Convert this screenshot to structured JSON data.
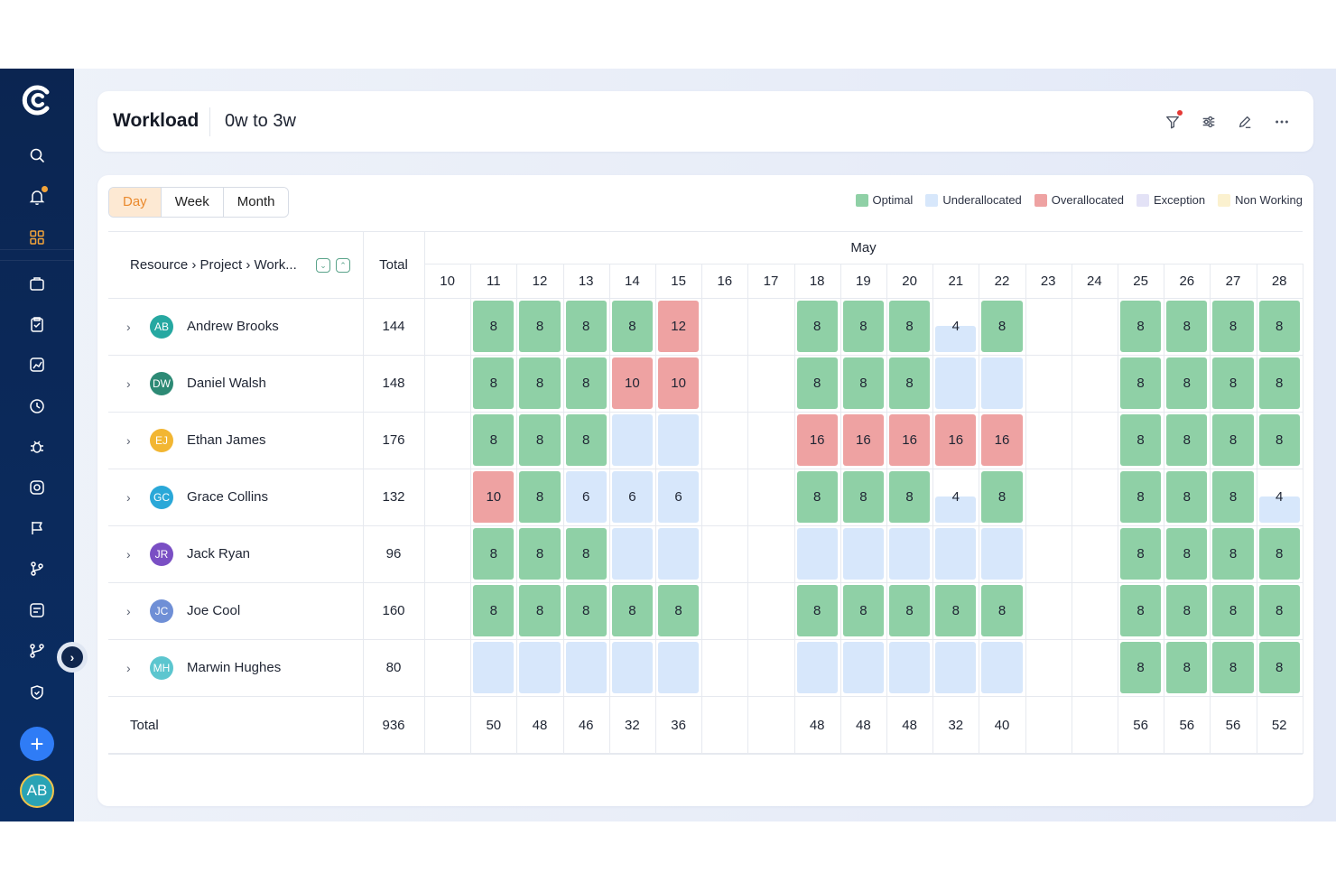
{
  "header": {
    "title": "Workload",
    "range": "0w to 3w"
  },
  "tabs": [
    {
      "label": "Day",
      "active": true
    },
    {
      "label": "Week",
      "active": false
    },
    {
      "label": "Month",
      "active": false
    }
  ],
  "legend": [
    {
      "label": "Optimal",
      "color": "#8fd0a6"
    },
    {
      "label": "Underallocated",
      "color": "#d7e7fb"
    },
    {
      "label": "Overallocated",
      "color": "#eea2a2"
    },
    {
      "label": "Exception",
      "color": "#e3e2f6"
    },
    {
      "label": "Non Working",
      "color": "#fbf1cf"
    }
  ],
  "grid": {
    "resource_header": "Resource › Project › Work...",
    "total_header": "Total",
    "month": "May",
    "days": [
      "10",
      "11",
      "12",
      "13",
      "14",
      "15",
      "16",
      "17",
      "18",
      "19",
      "20",
      "21",
      "22",
      "23",
      "24",
      "25",
      "26",
      "27",
      "28"
    ],
    "rows": [
      {
        "initials": "AB",
        "name": "Andrew Brooks",
        "avatar_color": "#26a8a1",
        "total": "144",
        "cells": [
          null,
          {
            "v": "8",
            "s": "o"
          },
          {
            "v": "8",
            "s": "o"
          },
          {
            "v": "8",
            "s": "o"
          },
          {
            "v": "8",
            "s": "o"
          },
          {
            "v": "12",
            "s": "x"
          },
          null,
          null,
          {
            "v": "8",
            "s": "o"
          },
          {
            "v": "8",
            "s": "o"
          },
          {
            "v": "8",
            "s": "o"
          },
          {
            "v": "4",
            "s": "p"
          },
          {
            "v": "8",
            "s": "o"
          },
          null,
          null,
          {
            "v": "8",
            "s": "o"
          },
          {
            "v": "8",
            "s": "o"
          },
          {
            "v": "8",
            "s": "o"
          },
          {
            "v": "8",
            "s": "o"
          }
        ]
      },
      {
        "initials": "DW",
        "name": "Daniel Walsh",
        "avatar_color": "#2d8a75",
        "total": "148",
        "cells": [
          null,
          {
            "v": "8",
            "s": "o"
          },
          {
            "v": "8",
            "s": "o"
          },
          {
            "v": "8",
            "s": "o"
          },
          {
            "v": "10",
            "s": "x"
          },
          {
            "v": "10",
            "s": "x"
          },
          null,
          null,
          {
            "v": "8",
            "s": "o"
          },
          {
            "v": "8",
            "s": "o"
          },
          {
            "v": "8",
            "s": "o"
          },
          {
            "v": "",
            "s": "u"
          },
          {
            "v": "",
            "s": "u"
          },
          null,
          null,
          {
            "v": "8",
            "s": "o"
          },
          {
            "v": "8",
            "s": "o"
          },
          {
            "v": "8",
            "s": "o"
          },
          {
            "v": "8",
            "s": "o"
          }
        ]
      },
      {
        "initials": "EJ",
        "name": "Ethan James",
        "avatar_color": "#f2b632",
        "total": "176",
        "cells": [
          null,
          {
            "v": "8",
            "s": "o"
          },
          {
            "v": "8",
            "s": "o"
          },
          {
            "v": "8",
            "s": "o"
          },
          {
            "v": "",
            "s": "u"
          },
          {
            "v": "",
            "s": "u"
          },
          null,
          null,
          {
            "v": "16",
            "s": "x"
          },
          {
            "v": "16",
            "s": "x"
          },
          {
            "v": "16",
            "s": "x"
          },
          {
            "v": "16",
            "s": "x"
          },
          {
            "v": "16",
            "s": "x"
          },
          null,
          null,
          {
            "v": "8",
            "s": "o"
          },
          {
            "v": "8",
            "s": "o"
          },
          {
            "v": "8",
            "s": "o"
          },
          {
            "v": "8",
            "s": "o"
          }
        ]
      },
      {
        "initials": "GC",
        "name": "Grace Collins",
        "avatar_color": "#2aa8d8",
        "total": "132",
        "cells": [
          null,
          {
            "v": "10",
            "s": "x"
          },
          {
            "v": "8",
            "s": "o"
          },
          {
            "v": "6",
            "s": "u"
          },
          {
            "v": "6",
            "s": "u"
          },
          {
            "v": "6",
            "s": "u"
          },
          null,
          null,
          {
            "v": "8",
            "s": "o"
          },
          {
            "v": "8",
            "s": "o"
          },
          {
            "v": "8",
            "s": "o"
          },
          {
            "v": "4",
            "s": "p"
          },
          {
            "v": "8",
            "s": "o"
          },
          null,
          null,
          {
            "v": "8",
            "s": "o"
          },
          {
            "v": "8",
            "s": "o"
          },
          {
            "v": "8",
            "s": "o"
          },
          {
            "v": "4",
            "s": "p"
          }
        ]
      },
      {
        "initials": "JR",
        "name": "Jack Ryan",
        "avatar_color": "#7a4fc4",
        "total": "96",
        "cells": [
          null,
          {
            "v": "8",
            "s": "o"
          },
          {
            "v": "8",
            "s": "o"
          },
          {
            "v": "8",
            "s": "o"
          },
          {
            "v": "",
            "s": "u"
          },
          {
            "v": "",
            "s": "u"
          },
          null,
          null,
          {
            "v": "",
            "s": "u"
          },
          {
            "v": "",
            "s": "u"
          },
          {
            "v": "",
            "s": "u"
          },
          {
            "v": "",
            "s": "u"
          },
          {
            "v": "",
            "s": "u"
          },
          null,
          null,
          {
            "v": "8",
            "s": "o"
          },
          {
            "v": "8",
            "s": "o"
          },
          {
            "v": "8",
            "s": "o"
          },
          {
            "v": "8",
            "s": "o"
          }
        ]
      },
      {
        "initials": "JC",
        "name": "Joe Cool",
        "avatar_color": "#6f8fd6",
        "total": "160",
        "cells": [
          null,
          {
            "v": "8",
            "s": "o"
          },
          {
            "v": "8",
            "s": "o"
          },
          {
            "v": "8",
            "s": "o"
          },
          {
            "v": "8",
            "s": "o"
          },
          {
            "v": "8",
            "s": "o"
          },
          null,
          null,
          {
            "v": "8",
            "s": "o"
          },
          {
            "v": "8",
            "s": "o"
          },
          {
            "v": "8",
            "s": "o"
          },
          {
            "v": "8",
            "s": "o"
          },
          {
            "v": "8",
            "s": "o"
          },
          null,
          null,
          {
            "v": "8",
            "s": "o"
          },
          {
            "v": "8",
            "s": "o"
          },
          {
            "v": "8",
            "s": "o"
          },
          {
            "v": "8",
            "s": "o"
          }
        ]
      },
      {
        "initials": "MH",
        "name": "Marwin Hughes",
        "avatar_color": "#5cc6cf",
        "total": "80",
        "cells": [
          null,
          {
            "v": "",
            "s": "u"
          },
          {
            "v": "",
            "s": "u"
          },
          {
            "v": "",
            "s": "u"
          },
          {
            "v": "",
            "s": "u"
          },
          {
            "v": "",
            "s": "u"
          },
          null,
          null,
          {
            "v": "",
            "s": "u"
          },
          {
            "v": "",
            "s": "u"
          },
          {
            "v": "",
            "s": "u"
          },
          {
            "v": "",
            "s": "u"
          },
          {
            "v": "",
            "s": "u"
          },
          null,
          null,
          {
            "v": "8",
            "s": "o"
          },
          {
            "v": "8",
            "s": "o"
          },
          {
            "v": "8",
            "s": "o"
          },
          {
            "v": "8",
            "s": "o"
          }
        ]
      }
    ],
    "footer": {
      "label": "Total",
      "total": "936",
      "days": [
        "",
        "50",
        "48",
        "46",
        "32",
        "36",
        "",
        "",
        "48",
        "48",
        "48",
        "32",
        "40",
        "",
        "",
        "56",
        "56",
        "56",
        "52"
      ]
    }
  },
  "sidebar": {
    "items": [
      "search-icon",
      "bell-icon",
      "apps-icon",
      "briefcase-icon",
      "clipboard-icon",
      "chart-icon",
      "clock-icon",
      "bug-icon",
      "target-icon",
      "flag-icon",
      "branch-icon",
      "report-icon",
      "git-icon",
      "shield-icon"
    ],
    "user_initials": "AB",
    "add_label": "+"
  },
  "colors": {
    "optimal": "#8fd0a6",
    "under": "#d7e7fb",
    "over": "#eea2a2",
    "accent": "#ea8a2e"
  }
}
